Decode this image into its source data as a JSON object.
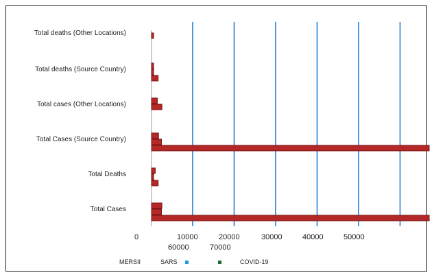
{
  "chart_data": {
    "type": "bar",
    "orientation": "horizontal",
    "categories": [
      "Total deaths (Other Locations)",
      "Total deaths (Source Country)",
      "Total cases (Other Locations)",
      "Total Cases (Source Country)",
      "Total Deaths",
      "Total Cases"
    ],
    "series": [
      {
        "name": "MERS",
        "values": [
          0,
          400,
          1400,
          1700,
          900,
          2500
        ]
      },
      {
        "name": "SARS",
        "values": [
          200,
          300,
          2500,
          2400,
          400,
          2400
        ]
      },
      {
        "name": "COVID-19",
        "values": [
          0,
          1600,
          0,
          5400,
          1600,
          7900
        ]
      }
    ],
    "series_overflow": {
      "Total Cases (Source Country)": {
        "COVID-19": 80000
      },
      "Total Cases": {
        "COVID-19": 81000
      }
    },
    "x_tick_labels_row1": [
      "0",
      "10000",
      "20000",
      "30000",
      "40000",
      "50000"
    ],
    "x_tick_labels_row2": [
      "60000",
      "70000"
    ],
    "xlim": [
      0,
      60000
    ],
    "grid": true,
    "colors": {
      "bar": "#b42828",
      "bar_dark": "#7a1414",
      "gridline": "#1f7fd6",
      "sars_marker": "#1e9be0",
      "covid_marker": "#1f6b2a"
    },
    "legend": {
      "position": "bottom",
      "items": [
        {
          "label": "MERS",
          "suffix": "II"
        },
        {
          "label": "SARS",
          "marker_color": "#1e9be0"
        },
        {
          "label": "COVID-19",
          "marker_color": "#1f6b2a"
        }
      ]
    }
  }
}
